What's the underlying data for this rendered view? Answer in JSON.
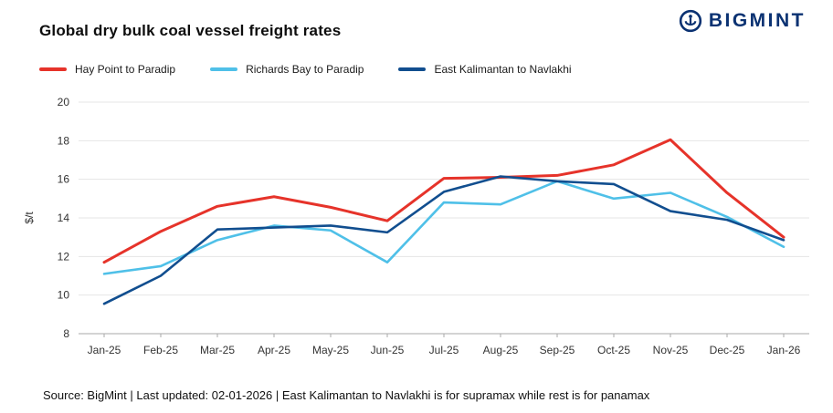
{
  "header": {
    "title": "Global dry bulk coal vessel freight rates",
    "logo_text": "BIGMINT",
    "logo_color": "#0b3272"
  },
  "footer": {
    "source_note": "Source: BigMint | Last updated: 02-01-2026 | East Kalimantan to Navlakhi is for supramax while rest is for panamax"
  },
  "chart_data": {
    "type": "line",
    "title": "Global dry bulk coal vessel freight rates",
    "ylabel": "$/t",
    "xlabel": "",
    "ylim": [
      8,
      20
    ],
    "ytick_step": 2,
    "grid": true,
    "legend_position": "top-left",
    "categories": [
      "Jan-25",
      "Feb-25",
      "Mar-25",
      "Apr-25",
      "May-25",
      "Jun-25",
      "Jul-25",
      "Aug-25",
      "Sep-25",
      "Oct-25",
      "Nov-25",
      "Dec-25",
      "Jan-26"
    ],
    "series": [
      {
        "name": "Hay Point to Paradip",
        "color": "#e6332a",
        "width": 3,
        "values": [
          11.7,
          13.3,
          14.6,
          15.1,
          14.55,
          13.85,
          16.05,
          16.1,
          16.2,
          16.75,
          18.05,
          15.3,
          13.0
        ]
      },
      {
        "name": "Richards Bay to Paradip",
        "color": "#4fc0e8",
        "width": 2.6,
        "values": [
          11.1,
          11.5,
          12.85,
          13.6,
          13.35,
          11.7,
          14.8,
          14.7,
          15.9,
          15.0,
          15.3,
          14.05,
          12.5
        ]
      },
      {
        "name": "East Kalimantan to Navlakhi",
        "color": "#114e8f",
        "width": 2.6,
        "values": [
          9.55,
          11.0,
          13.4,
          13.5,
          13.6,
          13.25,
          15.35,
          16.15,
          15.9,
          15.75,
          14.35,
          13.9,
          12.85
        ]
      }
    ]
  }
}
